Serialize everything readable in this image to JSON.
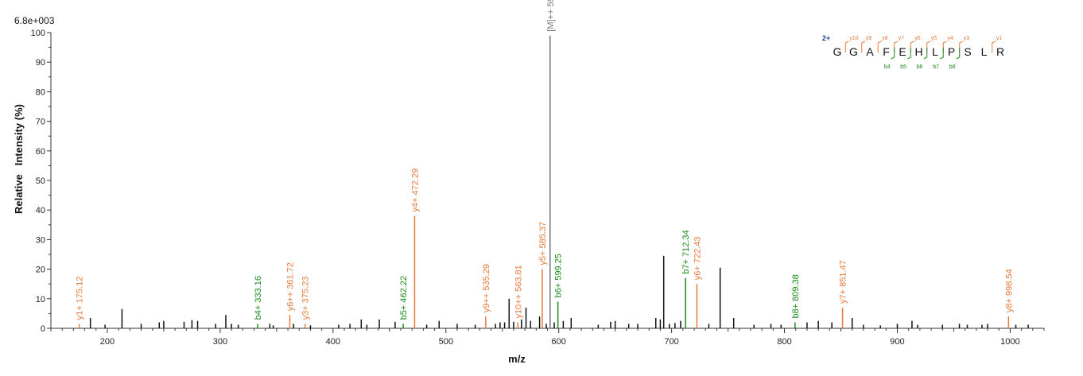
{
  "chart_data": {
    "type": "bar",
    "title": "",
    "intensity_scale": "6.8e+003",
    "xlabel": "m/z",
    "ylabel": "Relative   Intensity (%)",
    "xlim": [
      150,
      1030
    ],
    "ylim": [
      0,
      100
    ],
    "x_ticks": [
      200,
      300,
      400,
      500,
      600,
      700,
      800,
      900,
      1000
    ],
    "y_ticks": [
      0,
      10,
      20,
      30,
      40,
      50,
      60,
      70,
      80,
      90,
      100
    ],
    "colors": {
      "y_ion": "#e8793a",
      "b_ion": "#1a8a1a",
      "precursor": "#777777",
      "unassigned": "#111111",
      "charge": "#1f3f9a"
    },
    "annotated_peaks": [
      {
        "label": "y1+ 175.12",
        "mz": 175.12,
        "intensity": 1.5,
        "ion": "y"
      },
      {
        "label": "b4+ 333.16",
        "mz": 333.16,
        "intensity": 1.5,
        "ion": "b"
      },
      {
        "label": "y6++ 361.72",
        "mz": 361.72,
        "intensity": 4.5,
        "ion": "y"
      },
      {
        "label": "y3+ 375.23",
        "mz": 375.23,
        "intensity": 1.5,
        "ion": "y"
      },
      {
        "label": "b5+ 462.22",
        "mz": 462.22,
        "intensity": 1.5,
        "ion": "b"
      },
      {
        "label": "y4+ 472.29",
        "mz": 472.29,
        "intensity": 38,
        "ion": "y"
      },
      {
        "label": "y9++ 535.29",
        "mz": 535.29,
        "intensity": 4,
        "ion": "y"
      },
      {
        "label": "y10++ 563.81",
        "mz": 563.81,
        "intensity": 2,
        "ion": "y"
      },
      {
        "label": "y5+ 585.37",
        "mz": 585.37,
        "intensity": 20,
        "ion": "y"
      },
      {
        "label": "[M]++ 592.31",
        "mz": 592.31,
        "intensity": 99,
        "ion": "precursor"
      },
      {
        "label": "b6+ 599.25",
        "mz": 599.25,
        "intensity": 9,
        "ion": "b"
      },
      {
        "label": "b7+ 712.34",
        "mz": 712.34,
        "intensity": 17,
        "ion": "b"
      },
      {
        "label": "y6+ 722.43",
        "mz": 722.43,
        "intensity": 15,
        "ion": "y"
      },
      {
        "label": "b8+ 809.38",
        "mz": 809.38,
        "intensity": 2,
        "ion": "b"
      },
      {
        "label": "y7+ 851.47",
        "mz": 851.47,
        "intensity": 7,
        "ion": "y"
      },
      {
        "label": "y8+ 998.54",
        "mz": 998.54,
        "intensity": 4,
        "ion": "y"
      }
    ],
    "unassigned_peaks": [
      {
        "mz": 185,
        "intensity": 3.5
      },
      {
        "mz": 198,
        "intensity": 1.2
      },
      {
        "mz": 213,
        "intensity": 6.5
      },
      {
        "mz": 230,
        "intensity": 1.5
      },
      {
        "mz": 246,
        "intensity": 2
      },
      {
        "mz": 250,
        "intensity": 2.5
      },
      {
        "mz": 268,
        "intensity": 2.2
      },
      {
        "mz": 275,
        "intensity": 2.8
      },
      {
        "mz": 280,
        "intensity": 2.5
      },
      {
        "mz": 296,
        "intensity": 1.5
      },
      {
        "mz": 305,
        "intensity": 4.5
      },
      {
        "mz": 310,
        "intensity": 1.5
      },
      {
        "mz": 316,
        "intensity": 1.2
      },
      {
        "mz": 344,
        "intensity": 1.5
      },
      {
        "mz": 347,
        "intensity": 1
      },
      {
        "mz": 365,
        "intensity": 1.5
      },
      {
        "mz": 380,
        "intensity": 1
      },
      {
        "mz": 405,
        "intensity": 1.2
      },
      {
        "mz": 415,
        "intensity": 1.5
      },
      {
        "mz": 425,
        "intensity": 3
      },
      {
        "mz": 430,
        "intensity": 1.2
      },
      {
        "mz": 441,
        "intensity": 3
      },
      {
        "mz": 455,
        "intensity": 2.2
      },
      {
        "mz": 483,
        "intensity": 1.2
      },
      {
        "mz": 494,
        "intensity": 2.5
      },
      {
        "mz": 510,
        "intensity": 1.5
      },
      {
        "mz": 526,
        "intensity": 1.2
      },
      {
        "mz": 544,
        "intensity": 1.5
      },
      {
        "mz": 548,
        "intensity": 2
      },
      {
        "mz": 552,
        "intensity": 2
      },
      {
        "mz": 556,
        "intensity": 10
      },
      {
        "mz": 560,
        "intensity": 2.2
      },
      {
        "mz": 567,
        "intensity": 3
      },
      {
        "mz": 571,
        "intensity": 7
      },
      {
        "mz": 575,
        "intensity": 2.5
      },
      {
        "mz": 583,
        "intensity": 4
      },
      {
        "mz": 589,
        "intensity": 1.5
      },
      {
        "mz": 596,
        "intensity": 2
      },
      {
        "mz": 604,
        "intensity": 2.5
      },
      {
        "mz": 611,
        "intensity": 3.5
      },
      {
        "mz": 635,
        "intensity": 1.2
      },
      {
        "mz": 646,
        "intensity": 2.2
      },
      {
        "mz": 650,
        "intensity": 2.5
      },
      {
        "mz": 662,
        "intensity": 1.5
      },
      {
        "mz": 670,
        "intensity": 1.5
      },
      {
        "mz": 686,
        "intensity": 3.5
      },
      {
        "mz": 690,
        "intensity": 3
      },
      {
        "mz": 693,
        "intensity": 24.5
      },
      {
        "mz": 698,
        "intensity": 1.5
      },
      {
        "mz": 703,
        "intensity": 1.8
      },
      {
        "mz": 708,
        "intensity": 2.5
      },
      {
        "mz": 733,
        "intensity": 1.5
      },
      {
        "mz": 743,
        "intensity": 20.5
      },
      {
        "mz": 755,
        "intensity": 3.5
      },
      {
        "mz": 773,
        "intensity": 1.2
      },
      {
        "mz": 788,
        "intensity": 1.5
      },
      {
        "mz": 797,
        "intensity": 1.2
      },
      {
        "mz": 820,
        "intensity": 2
      },
      {
        "mz": 830,
        "intensity": 2.5
      },
      {
        "mz": 842,
        "intensity": 2
      },
      {
        "mz": 860,
        "intensity": 3.5
      },
      {
        "mz": 870,
        "intensity": 1.2
      },
      {
        "mz": 885,
        "intensity": 1
      },
      {
        "mz": 900,
        "intensity": 1.5
      },
      {
        "mz": 913,
        "intensity": 2.5
      },
      {
        "mz": 918,
        "intensity": 1.2
      },
      {
        "mz": 940,
        "intensity": 1.2
      },
      {
        "mz": 955,
        "intensity": 1.5
      },
      {
        "mz": 962,
        "intensity": 1.2
      },
      {
        "mz": 975,
        "intensity": 1.2
      },
      {
        "mz": 980,
        "intensity": 1.5
      },
      {
        "mz": 1005,
        "intensity": 1.2
      },
      {
        "mz": 1016,
        "intensity": 1.2
      }
    ],
    "sequence": {
      "charge": "2+",
      "residues": [
        "G",
        "G",
        "A",
        "F",
        "E",
        "H",
        "L",
        "P",
        "S",
        "L",
        "R"
      ],
      "y_marks": [
        {
          "label": "y10",
          "after": 1
        },
        {
          "label": "y9",
          "after": 2
        },
        {
          "label": "y8",
          "after": 3
        },
        {
          "label": "y7",
          "after": 4
        },
        {
          "label": "y6",
          "after": 5
        },
        {
          "label": "y5",
          "after": 6
        },
        {
          "label": "y4",
          "after": 7
        },
        {
          "label": "y3",
          "after": 8
        },
        {
          "label": "y1",
          "after": 10
        }
      ],
      "b_marks": [
        {
          "label": "b4",
          "after": 4
        },
        {
          "label": "b5",
          "after": 5
        },
        {
          "label": "b6",
          "after": 6
        },
        {
          "label": "b7",
          "after": 7
        },
        {
          "label": "b8",
          "after": 8
        }
      ]
    }
  }
}
